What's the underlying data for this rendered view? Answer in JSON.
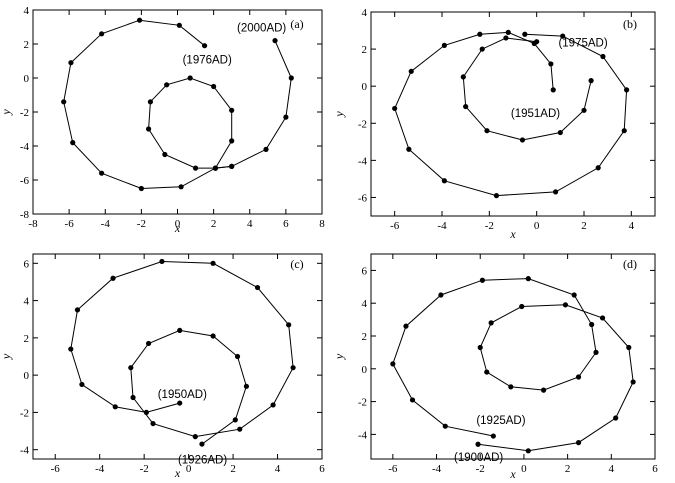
{
  "chart_data": [
    {
      "type": "line",
      "panel_label": "(a)",
      "xlabel": "x",
      "ylabel": "y",
      "xlim": [
        -8,
        8
      ],
      "ylim": [
        -8,
        4
      ],
      "xticks": [
        -8,
        -6,
        -4,
        -2,
        0,
        2,
        4,
        6,
        8
      ],
      "yticks": [
        -8,
        -6,
        -4,
        -2,
        0,
        2,
        4
      ],
      "marker": "filled-circle",
      "color": "#000000",
      "points": [
        [
          1.5,
          1.9
        ],
        [
          0.1,
          3.1
        ],
        [
          -2.1,
          3.4
        ],
        [
          -4.2,
          2.6
        ],
        [
          -5.9,
          0.9
        ],
        [
          -6.3,
          -1.4
        ],
        [
          -5.8,
          -3.8
        ],
        [
          -4.2,
          -5.6
        ],
        [
          -2.0,
          -6.5
        ],
        [
          0.2,
          -6.4
        ],
        [
          2.1,
          -5.3
        ],
        [
          3.0,
          -5.2
        ],
        [
          4.9,
          -4.2
        ],
        [
          6.0,
          -2.3
        ],
        [
          6.3,
          0.0
        ],
        [
          5.4,
          2.2
        ]
      ],
      "inner_points": [
        [
          3.0,
          -5.2
        ],
        [
          2.1,
          -5.3
        ],
        [
          1.0,
          -5.3
        ],
        [
          -0.7,
          -4.5
        ],
        [
          -1.6,
          -3.0
        ],
        [
          -1.5,
          -1.4
        ],
        [
          -0.6,
          -0.4
        ],
        [
          0.7,
          0.0
        ],
        [
          2.0,
          -0.5
        ],
        [
          3.0,
          -1.9
        ],
        [
          3.0,
          -3.7
        ],
        [
          2.1,
          -5.3
        ]
      ],
      "annotations": [
        {
          "text": "(1976AD)",
          "x": 1.5,
          "y": 1.9
        },
        {
          "text": "(2000AD)",
          "x": 5.4,
          "y": 2.2
        }
      ]
    },
    {
      "type": "line",
      "panel_label": "(b)",
      "xlabel": "x",
      "ylabel": "y",
      "xlim": [
        -7,
        5
      ],
      "ylim": [
        -7,
        4
      ],
      "xticks": [
        -6,
        -4,
        -2,
        0,
        2,
        4
      ],
      "yticks": [
        -6,
        -4,
        -2,
        0,
        2,
        4
      ],
      "marker": "filled-circle",
      "color": "#000000",
      "points": [
        [
          0.7,
          -0.2
        ],
        [
          0.6,
          1.2
        ],
        [
          -0.1,
          2.3
        ],
        [
          -1.2,
          2.9
        ],
        [
          -2.4,
          2.8
        ],
        [
          -3.9,
          2.2
        ],
        [
          -5.3,
          0.8
        ],
        [
          -6.0,
          -1.2
        ],
        [
          -5.4,
          -3.4
        ],
        [
          -3.9,
          -5.1
        ],
        [
          -1.7,
          -5.9
        ],
        [
          0.8,
          -5.7
        ],
        [
          2.6,
          -4.4
        ],
        [
          3.7,
          -2.4
        ],
        [
          3.8,
          -0.2
        ],
        [
          2.8,
          1.6
        ],
        [
          1.1,
          2.7
        ],
        [
          -0.5,
          2.8
        ]
      ],
      "inner_points": [
        [
          2.3,
          0.3
        ],
        [
          2.0,
          -1.3
        ],
        [
          1.0,
          -2.5
        ],
        [
          -0.6,
          -2.9
        ],
        [
          -2.1,
          -2.4
        ],
        [
          -3.0,
          -1.1
        ],
        [
          -3.1,
          0.5
        ],
        [
          -2.3,
          2.0
        ],
        [
          -1.3,
          2.6
        ],
        [
          0.0,
          2.4
        ]
      ],
      "annotations": [
        {
          "text": "(1951AD)",
          "x": 0.6,
          "y": -0.9
        },
        {
          "text": "(1975AD)",
          "x": 2.4,
          "y": 1.0
        }
      ]
    },
    {
      "type": "line",
      "panel_label": "(c)",
      "xlabel": "x",
      "ylabel": "y",
      "xlim": [
        -7,
        6
      ],
      "ylim": [
        -4.5,
        6.5
      ],
      "xticks": [
        -6,
        -4,
        -2,
        0,
        2,
        4,
        6
      ],
      "yticks": [
        -4,
        -2,
        0,
        2,
        4,
        6
      ],
      "marker": "filled-circle",
      "color": "#000000",
      "points": [
        [
          -0.4,
          -1.5
        ],
        [
          -1.9,
          -2.0
        ],
        [
          -3.3,
          -1.7
        ],
        [
          -4.8,
          -0.5
        ],
        [
          -5.3,
          1.4
        ],
        [
          -5.0,
          3.5
        ],
        [
          -3.4,
          5.2
        ],
        [
          -1.2,
          6.1
        ],
        [
          1.1,
          6.0
        ],
        [
          3.1,
          4.7
        ],
        [
          4.5,
          2.7
        ],
        [
          4.7,
          0.4
        ],
        [
          3.8,
          -1.6
        ],
        [
          2.3,
          -2.9
        ],
        [
          0.3,
          -3.3
        ],
        [
          -1.6,
          -2.6
        ],
        [
          -2.5,
          -1.2
        ],
        [
          -2.6,
          0.4
        ],
        [
          -1.8,
          1.7
        ],
        [
          -0.4,
          2.4
        ],
        [
          1.1,
          2.1
        ],
        [
          2.2,
          1.0
        ],
        [
          2.6,
          -0.6
        ],
        [
          2.1,
          -2.4
        ],
        [
          0.6,
          -3.7
        ]
      ],
      "annotations": [
        {
          "text": "(1950AD)",
          "x": -0.4,
          "y": -1.0
        },
        {
          "text": "(1926AD)",
          "x": 0.6,
          "y": -4.1
        }
      ]
    },
    {
      "type": "line",
      "panel_label": "(d)",
      "xlabel": "x",
      "ylabel": "y",
      "xlim": [
        -7,
        6
      ],
      "ylim": [
        -5.5,
        7
      ],
      "xticks": [
        -6,
        -4,
        -2,
        0,
        2,
        4,
        6
      ],
      "yticks": [
        -4,
        -2,
        0,
        2,
        4,
        6
      ],
      "marker": "filled-circle",
      "color": "#000000",
      "points": [
        [
          -1.4,
          -4.1
        ],
        [
          -3.6,
          -3.5
        ],
        [
          -5.1,
          -1.9
        ],
        [
          -6.0,
          0.3
        ],
        [
          -5.4,
          2.6
        ],
        [
          -3.8,
          4.5
        ],
        [
          -1.9,
          5.4
        ],
        [
          0.2,
          5.5
        ],
        [
          2.3,
          4.5
        ],
        [
          3.1,
          2.7
        ],
        [
          3.3,
          1.0
        ],
        [
          2.5,
          -0.5
        ],
        [
          0.9,
          -1.3
        ],
        [
          -0.6,
          -1.1
        ],
        [
          -1.7,
          -0.2
        ],
        [
          -2.0,
          1.3
        ],
        [
          -1.5,
          2.8
        ],
        [
          -0.1,
          3.8
        ],
        [
          1.9,
          3.9
        ],
        [
          3.6,
          3.1
        ],
        [
          4.8,
          1.3
        ],
        [
          5.0,
          -0.8
        ],
        [
          4.2,
          -3.0
        ],
        [
          2.5,
          -4.5
        ],
        [
          0.2,
          -5.0
        ],
        [
          -2.1,
          -4.6
        ]
      ],
      "annotations": [
        {
          "text": "(1925AD)",
          "x": -1.4,
          "y": -3.6
        },
        {
          "text": "(1900AD)",
          "x": -2.1,
          "y": -5.0
        }
      ]
    }
  ]
}
